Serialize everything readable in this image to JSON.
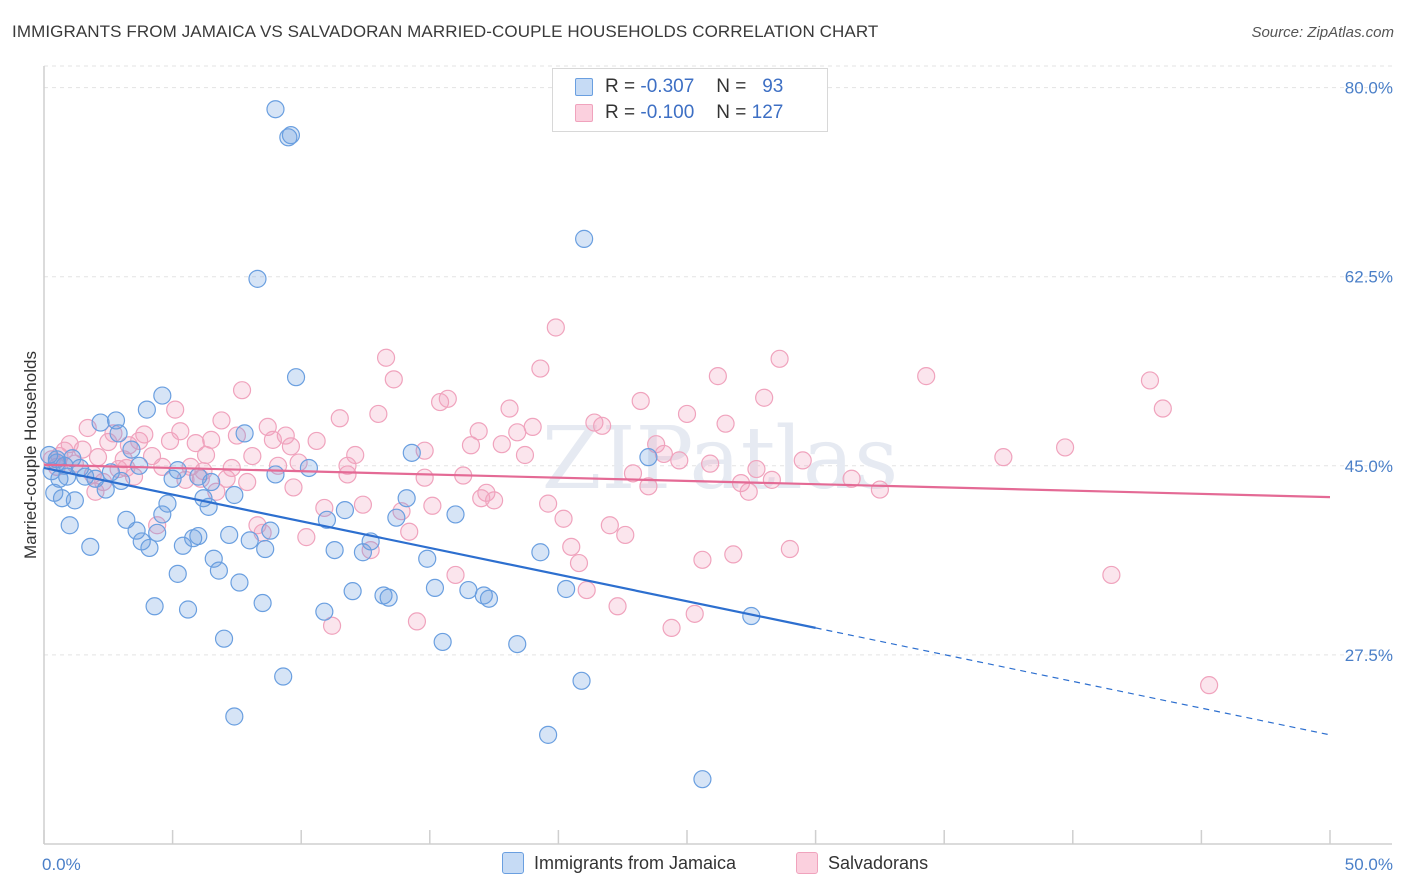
{
  "title": "IMMIGRANTS FROM JAMAICA VS SALVADORAN MARRIED-COUPLE HOUSEHOLDS CORRELATION CHART",
  "source": "Source: ZipAtlas.com",
  "watermark": "ZIPatlas",
  "legend_top": {
    "rows": [
      {
        "r_label": "R =",
        "r_value": "-0.307",
        "n_label": "N =",
        "n_value": "93"
      },
      {
        "r_label": "R =",
        "r_value": "-0.100",
        "n_label": "N =",
        "n_value": "127"
      }
    ]
  },
  "legend_bottom": [
    "Immigrants from Jamaica",
    "Salvadorans"
  ],
  "colors": {
    "blue": "#6a9fe0",
    "blue_line": "#2d6fcf",
    "pink": "#f0a3bd",
    "pink_line": "#e46a95",
    "tick": "#4a7fc8"
  },
  "chart_data": {
    "type": "scatter",
    "xlabel": "",
    "ylabel": "Married-couple Households",
    "xlim": [
      0,
      50
    ],
    "ylim": [
      10,
      82
    ],
    "x_tick_labels": [
      "0.0%",
      "50.0%"
    ],
    "y_ticks": [
      27.5,
      45.0,
      62.5,
      80.0
    ],
    "y_tick_labels": [
      "27.5%",
      "45.0%",
      "62.5%",
      "80.0%"
    ],
    "grid": true,
    "legend_position": "bottom",
    "series": [
      {
        "name": "Immigrants from Jamaica",
        "color": "#6a9fe0",
        "trend": {
          "x0": 0,
          "y0": 44.8,
          "x1": 30,
          "y1": 30.0,
          "dash_to_x": 50,
          "dash_to_y": 20.1
        },
        "points": [
          [
            0.2,
            46.0
          ],
          [
            0.3,
            44.5
          ],
          [
            0.4,
            42.5
          ],
          [
            0.5,
            45.6
          ],
          [
            0.6,
            43.8
          ],
          [
            0.7,
            42.0
          ],
          [
            0.8,
            45.0
          ],
          [
            0.9,
            44.0
          ],
          [
            1.0,
            39.5
          ],
          [
            1.2,
            41.8
          ],
          [
            1.4,
            44.8
          ],
          [
            1.6,
            44.0
          ],
          [
            1.8,
            37.5
          ],
          [
            2.0,
            43.8
          ],
          [
            2.2,
            49.0
          ],
          [
            2.4,
            42.8
          ],
          [
            2.6,
            44.4
          ],
          [
            2.8,
            49.2
          ],
          [
            3.0,
            43.6
          ],
          [
            3.2,
            40.0
          ],
          [
            3.4,
            46.5
          ],
          [
            3.6,
            39.0
          ],
          [
            3.8,
            38.0
          ],
          [
            4.0,
            50.2
          ],
          [
            4.1,
            37.4
          ],
          [
            4.3,
            32.0
          ],
          [
            4.4,
            38.8
          ],
          [
            4.6,
            51.5
          ],
          [
            4.8,
            41.5
          ],
          [
            5.0,
            43.8
          ],
          [
            5.2,
            35.0
          ],
          [
            5.4,
            37.6
          ],
          [
            5.6,
            31.7
          ],
          [
            5.8,
            38.3
          ],
          [
            6.0,
            38.5
          ],
          [
            6.2,
            42.0
          ],
          [
            6.4,
            41.2
          ],
          [
            6.6,
            36.4
          ],
          [
            6.8,
            35.3
          ],
          [
            7.0,
            29.0
          ],
          [
            7.2,
            38.6
          ],
          [
            7.4,
            42.3
          ],
          [
            7.6,
            34.2
          ],
          [
            7.8,
            48.0
          ],
          [
            8.0,
            38.1
          ],
          [
            8.3,
            62.3
          ],
          [
            8.5,
            32.3
          ],
          [
            8.6,
            37.3
          ],
          [
            9.0,
            78.0
          ],
          [
            9.3,
            25.5
          ],
          [
            9.5,
            75.4
          ],
          [
            9.6,
            75.6
          ],
          [
            9.8,
            53.2
          ],
          [
            10.3,
            44.8
          ],
          [
            10.9,
            31.5
          ],
          [
            11.3,
            37.2
          ],
          [
            11.7,
            40.9
          ],
          [
            12.0,
            33.4
          ],
          [
            12.4,
            37.0
          ],
          [
            13.2,
            33.0
          ],
          [
            13.4,
            32.8
          ],
          [
            13.7,
            40.2
          ],
          [
            14.1,
            42.0
          ],
          [
            14.3,
            46.2
          ],
          [
            14.9,
            36.4
          ],
          [
            15.2,
            33.7
          ],
          [
            15.5,
            28.7
          ],
          [
            16.0,
            40.5
          ],
          [
            16.5,
            33.5
          ],
          [
            17.1,
            33.0
          ],
          [
            17.3,
            32.7
          ],
          [
            18.4,
            28.5
          ],
          [
            19.3,
            37.0
          ],
          [
            19.6,
            20.1
          ],
          [
            20.3,
            33.6
          ],
          [
            20.9,
            25.1
          ],
          [
            21.0,
            66.0
          ],
          [
            23.5,
            45.8
          ],
          [
            25.6,
            16.0
          ],
          [
            27.5,
            31.1
          ],
          [
            3.7,
            45.0
          ],
          [
            1.1,
            45.7
          ],
          [
            0.5,
            45.3
          ],
          [
            7.4,
            21.8
          ],
          [
            5.2,
            44.6
          ],
          [
            6.5,
            43.5
          ],
          [
            9.0,
            44.2
          ],
          [
            2.9,
            48.0
          ],
          [
            4.6,
            40.5
          ],
          [
            6.0,
            44.0
          ],
          [
            8.8,
            39.0
          ],
          [
            11.0,
            40.0
          ],
          [
            12.7,
            38.0
          ]
        ]
      },
      {
        "name": "Salvadorans",
        "color": "#f0a3bd",
        "trend": {
          "x0": 0,
          "y0": 45.1,
          "x1": 50,
          "y1": 42.1
        },
        "points": [
          [
            0.3,
            45.6
          ],
          [
            0.5,
            44.9
          ],
          [
            0.6,
            45.9
          ],
          [
            0.8,
            46.4
          ],
          [
            1.0,
            47.0
          ],
          [
            1.2,
            45.2
          ],
          [
            1.5,
            46.5
          ],
          [
            1.7,
            48.5
          ],
          [
            1.9,
            44.2
          ],
          [
            2.1,
            45.8
          ],
          [
            2.3,
            43.5
          ],
          [
            2.5,
            47.2
          ],
          [
            2.7,
            48.0
          ],
          [
            2.9,
            44.7
          ],
          [
            3.1,
            45.6
          ],
          [
            3.3,
            46.9
          ],
          [
            3.5,
            44.0
          ],
          [
            3.7,
            47.3
          ],
          [
            3.9,
            47.9
          ],
          [
            4.2,
            45.9
          ],
          [
            4.4,
            39.5
          ],
          [
            4.6,
            44.9
          ],
          [
            4.9,
            47.3
          ],
          [
            5.1,
            50.2
          ],
          [
            5.3,
            48.2
          ],
          [
            5.5,
            43.7
          ],
          [
            5.7,
            44.9
          ],
          [
            5.9,
            47.1
          ],
          [
            6.1,
            43.8
          ],
          [
            6.3,
            46.0
          ],
          [
            6.5,
            47.4
          ],
          [
            6.7,
            42.6
          ],
          [
            6.9,
            49.2
          ],
          [
            7.1,
            43.8
          ],
          [
            7.3,
            44.8
          ],
          [
            7.5,
            47.8
          ],
          [
            7.7,
            52.0
          ],
          [
            7.9,
            43.5
          ],
          [
            8.1,
            45.9
          ],
          [
            8.3,
            39.5
          ],
          [
            8.5,
            38.8
          ],
          [
            8.7,
            48.6
          ],
          [
            8.9,
            47.4
          ],
          [
            9.1,
            45.0
          ],
          [
            9.4,
            47.8
          ],
          [
            9.6,
            46.8
          ],
          [
            9.9,
            45.3
          ],
          [
            10.2,
            38.4
          ],
          [
            10.6,
            47.3
          ],
          [
            10.9,
            41.1
          ],
          [
            11.2,
            30.2
          ],
          [
            11.5,
            49.4
          ],
          [
            11.8,
            45.0
          ],
          [
            12.1,
            46.0
          ],
          [
            12.4,
            41.4
          ],
          [
            12.7,
            37.2
          ],
          [
            13.0,
            49.8
          ],
          [
            13.3,
            55.0
          ],
          [
            13.6,
            53.0
          ],
          [
            13.9,
            40.8
          ],
          [
            14.2,
            38.9
          ],
          [
            14.5,
            30.6
          ],
          [
            14.8,
            46.4
          ],
          [
            15.1,
            41.3
          ],
          [
            15.4,
            50.9
          ],
          [
            15.7,
            51.2
          ],
          [
            16.0,
            34.9
          ],
          [
            16.3,
            44.1
          ],
          [
            16.6,
            46.9
          ],
          [
            16.9,
            48.2
          ],
          [
            17.2,
            42.5
          ],
          [
            17.5,
            41.8
          ],
          [
            17.8,
            47.0
          ],
          [
            18.1,
            50.3
          ],
          [
            18.4,
            48.1
          ],
          [
            18.7,
            46.0
          ],
          [
            19.0,
            48.6
          ],
          [
            19.3,
            54.0
          ],
          [
            19.6,
            41.5
          ],
          [
            19.9,
            57.8
          ],
          [
            20.2,
            40.1
          ],
          [
            20.5,
            37.5
          ],
          [
            20.8,
            36.0
          ],
          [
            21.1,
            33.5
          ],
          [
            21.4,
            49.0
          ],
          [
            21.7,
            48.7
          ],
          [
            22.0,
            39.5
          ],
          [
            22.3,
            32.0
          ],
          [
            22.6,
            38.6
          ],
          [
            22.9,
            44.3
          ],
          [
            23.2,
            51.0
          ],
          [
            23.5,
            43.1
          ],
          [
            23.8,
            47.0
          ],
          [
            24.1,
            46.1
          ],
          [
            24.4,
            30.0
          ],
          [
            24.7,
            45.5
          ],
          [
            25.0,
            49.8
          ],
          [
            25.3,
            31.3
          ],
          [
            25.6,
            36.3
          ],
          [
            25.9,
            45.2
          ],
          [
            26.2,
            53.3
          ],
          [
            26.5,
            48.9
          ],
          [
            26.8,
            36.8
          ],
          [
            27.1,
            43.4
          ],
          [
            27.4,
            42.6
          ],
          [
            27.7,
            44.7
          ],
          [
            28.0,
            51.3
          ],
          [
            28.3,
            43.7
          ],
          [
            28.6,
            54.9
          ],
          [
            29.0,
            37.3
          ],
          [
            29.5,
            45.5
          ],
          [
            31.4,
            43.8
          ],
          [
            32.5,
            42.8
          ],
          [
            34.3,
            53.3
          ],
          [
            37.3,
            45.8
          ],
          [
            39.7,
            46.7
          ],
          [
            41.5,
            34.9
          ],
          [
            43.0,
            52.9
          ],
          [
            43.5,
            50.3
          ],
          [
            45.3,
            24.7
          ],
          [
            11.8,
            44.2
          ],
          [
            14.8,
            43.9
          ],
          [
            6.2,
            44.5
          ],
          [
            3.2,
            44.8
          ],
          [
            2.0,
            42.6
          ],
          [
            17.0,
            42.0
          ],
          [
            9.7,
            43.0
          ]
        ]
      }
    ]
  }
}
